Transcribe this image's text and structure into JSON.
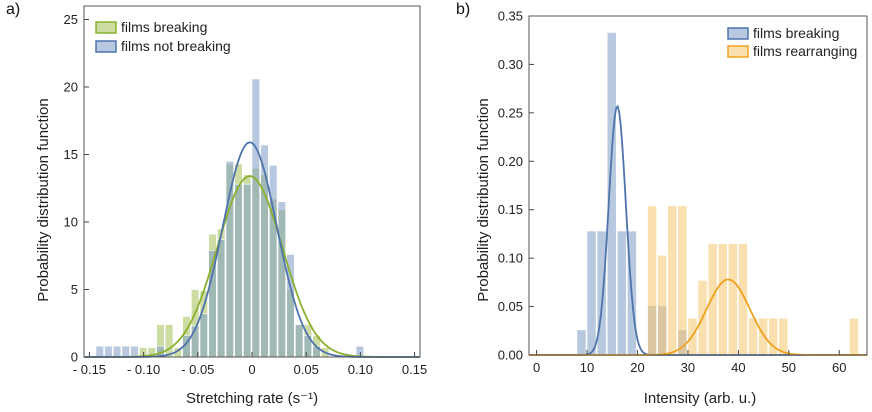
{
  "chart_data": [
    {
      "type": "bar",
      "panel_label": "a)",
      "xlabel": "Stretching rate (s⁻¹)",
      "ylabel": "Probability distribution function",
      "xlim": [
        -0.155,
        0.155
      ],
      "ylim": [
        0,
        26
      ],
      "xticks": [
        -0.15,
        -0.1,
        -0.05,
        0,
        0.05,
        0.1,
        0.15
      ],
      "xtick_labels": [
        "- 0.15",
        "- 0.10",
        "- 0.05",
        "0",
        "0.05",
        "0.10",
        "0.15"
      ],
      "yticks": [
        0,
        5,
        10,
        15,
        20,
        25
      ],
      "ytick_labels": [
        "0",
        "5",
        "10",
        "15",
        "20",
        "25"
      ],
      "bin_width": 0.008,
      "bin_centers": [
        -0.14,
        -0.132,
        -0.124,
        -0.116,
        -0.108,
        -0.1,
        -0.092,
        -0.084,
        -0.076,
        -0.068,
        -0.06,
        -0.052,
        -0.044,
        -0.036,
        -0.028,
        -0.02,
        -0.012,
        -0.004,
        0.004,
        0.012,
        0.02,
        0.028,
        0.036,
        0.044,
        0.052,
        0.06,
        0.068,
        0.076,
        0.084,
        0.092,
        0.1,
        0.108,
        0.116
      ],
      "series": [
        {
          "name": "films breaking",
          "color": "#a4c058",
          "values": [
            0,
            0,
            0,
            0,
            0,
            0.7,
            0.7,
            2.4,
            2.4,
            0.7,
            3.0,
            5.0,
            4.9,
            9.1,
            9.5,
            14.3,
            14.3,
            13.5,
            14.0,
            13.5,
            11.7,
            10.9,
            5.0,
            2.4,
            2.4,
            1.6,
            0.7,
            0,
            0,
            0,
            0,
            0,
            0
          ]
        },
        {
          "name": "films not breaking",
          "color": "#7e9cc5",
          "values": [
            0.8,
            0.8,
            0.8,
            0.8,
            0.8,
            0,
            0,
            0.8,
            0,
            0,
            1.6,
            2.3,
            3.2,
            7.9,
            8.7,
            14.5,
            12.8,
            12.8,
            20.6,
            15.7,
            14.2,
            11.5,
            7.6,
            2.4,
            1.6,
            0.8,
            0,
            0,
            0,
            0,
            0.8,
            0,
            0
          ]
        }
      ],
      "fits": [
        {
          "name": "films breaking",
          "color": "#8ab02e",
          "mean": -0.002,
          "peak": 13.4,
          "sigma": 0.03
        },
        {
          "name": "films not breaking",
          "color": "#4e73ad",
          "mean": -0.002,
          "peak": 15.9,
          "sigma": 0.025
        }
      ],
      "legend": [
        "films breaking",
        "films not breaking"
      ],
      "legend_position": "top-left"
    },
    {
      "type": "bar",
      "panel_label": "b)",
      "xlabel": "Intensity (arb. u.)",
      "ylabel": "Probability distribution function",
      "xlim": [
        -1.5,
        65.5
      ],
      "ylim": [
        0,
        0.35
      ],
      "xticks": [
        0,
        10,
        20,
        30,
        40,
        50,
        60
      ],
      "xtick_labels": [
        "0",
        "10",
        "20",
        "30",
        "40",
        "50",
        "60"
      ],
      "yticks": [
        0,
        0.05,
        0.1,
        0.15,
        0.2,
        0.25,
        0.3,
        0.35
      ],
      "ytick_labels": [
        "0.00",
        "0.05",
        "0.10",
        "0.15",
        "0.20",
        "0.25",
        "0.30",
        "0.35"
      ],
      "bin_width": 2,
      "bin_centers": [
        5,
        7,
        9,
        11,
        13,
        15,
        17,
        19,
        21,
        23,
        25,
        27,
        29,
        31,
        33,
        35,
        37,
        39,
        41,
        43,
        45,
        47,
        49,
        51,
        53,
        55,
        57,
        59,
        61,
        63
      ],
      "series": [
        {
          "name": "films breaking",
          "color": "#7e9cc5",
          "values": [
            0,
            0,
            0.026,
            0.128,
            0.128,
            0.333,
            0.128,
            0.128,
            0,
            0.051,
            0.051,
            0,
            0.026,
            0,
            0,
            0,
            0,
            0,
            0,
            0,
            0,
            0,
            0,
            0,
            0,
            0,
            0,
            0,
            0,
            0
          ]
        },
        {
          "name": "films rearranging",
          "color": "#f6c46d",
          "values": [
            0,
            0,
            0,
            0,
            0,
            0,
            0,
            0,
            0,
            0.154,
            0.103,
            0.154,
            0.154,
            0.038,
            0.077,
            0.115,
            0.115,
            0.115,
            0.115,
            0.038,
            0.038,
            0.038,
            0.038,
            0,
            0,
            0,
            0,
            0,
            0,
            0.038
          ]
        }
      ],
      "fits": [
        {
          "name": "films breaking",
          "color": "#4e73ad",
          "mean": 16.0,
          "peak": 0.257,
          "sigma": 1.7
        },
        {
          "name": "films rearranging",
          "color": "#f0a21e",
          "mean": 38.0,
          "peak": 0.078,
          "sigma": 4.3
        }
      ],
      "legend": [
        "films breaking",
        "films rearranging"
      ],
      "legend_position": "top-right"
    }
  ]
}
